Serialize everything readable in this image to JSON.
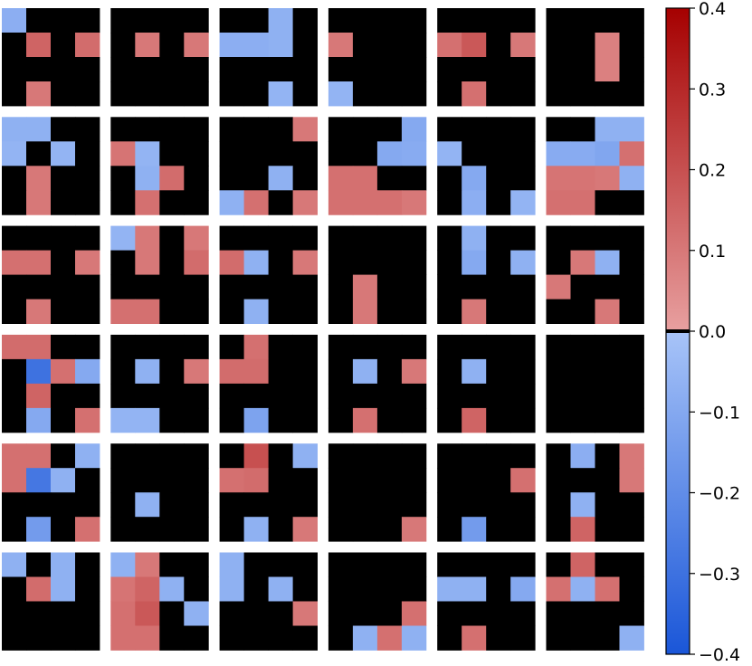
{
  "chart_data": {
    "type": "heatmap",
    "title": "",
    "xlabel": "",
    "ylabel": "",
    "layout": {
      "rows": 6,
      "cols": 6,
      "cell_grid": 4
    },
    "colormap": {
      "name": "diverging-blue-red",
      "zero_color": "#000000",
      "neg_light": "#a8c4f8",
      "neg_dark": "#1a56d8",
      "pos_light": "#e8a0a0",
      "pos_dark": "#a50000"
    },
    "vmin": -0.4,
    "vmax": 0.4,
    "colorbar": {
      "ticks": [
        0.4,
        0.3,
        0.2,
        0.1,
        0.0,
        -0.1,
        -0.2,
        -0.3,
        -0.4
      ],
      "tick_labels": [
        "0.4",
        "0.3",
        "0.2",
        "0.1",
        "0.0",
        "−0.1",
        "−0.2",
        "−0.3",
        "−0.4"
      ]
    },
    "panels": [
      [
        [
          -0.08,
          0,
          0,
          0
        ],
        [
          0,
          0.15,
          0,
          0.13
        ],
        [
          0,
          0,
          0,
          0
        ],
        [
          0,
          0.1,
          0,
          0
        ]
      ],
      [
        [
          0,
          0,
          0,
          0
        ],
        [
          0,
          0.1,
          0,
          0.1
        ],
        [
          0,
          0,
          0,
          0
        ],
        [
          0,
          0,
          0,
          0
        ]
      ],
      [
        [
          0,
          0,
          -0.07,
          0
        ],
        [
          -0.08,
          -0.08,
          -0.07,
          0
        ],
        [
          0,
          0,
          0,
          0
        ],
        [
          0,
          0,
          -0.06,
          0
        ]
      ],
      [
        [
          0,
          0,
          0,
          0
        ],
        [
          0.1,
          0,
          0,
          0
        ],
        [
          0,
          0,
          0,
          0
        ],
        [
          -0.06,
          0,
          0,
          0
        ]
      ],
      [
        [
          0,
          0,
          0,
          0
        ],
        [
          0.12,
          0.18,
          0,
          0.1
        ],
        [
          0,
          0,
          0,
          0
        ],
        [
          0,
          0.12,
          0,
          0
        ]
      ],
      [
        [
          0,
          0,
          0,
          0
        ],
        [
          0,
          0,
          0.08,
          0
        ],
        [
          0,
          0,
          0.08,
          0
        ],
        [
          0,
          0,
          0,
          0
        ]
      ],
      [
        [
          -0.07,
          -0.07,
          0,
          0
        ],
        [
          -0.06,
          0,
          -0.06,
          0
        ],
        [
          0,
          0.1,
          0,
          0
        ],
        [
          0,
          0.1,
          0,
          0
        ]
      ],
      [
        [
          0,
          0,
          0,
          0
        ],
        [
          0.11,
          -0.06,
          0,
          0
        ],
        [
          0,
          -0.07,
          0.13,
          0
        ],
        [
          0,
          0.12,
          0,
          0
        ]
      ],
      [
        [
          0,
          0,
          0,
          0.1
        ],
        [
          0,
          0,
          0,
          0
        ],
        [
          0,
          0,
          -0.07,
          0
        ],
        [
          -0.07,
          0.12,
          0,
          0.1
        ]
      ],
      [
        [
          0,
          0,
          0,
          -0.1
        ],
        [
          0,
          0,
          -0.1,
          -0.09
        ],
        [
          0.12,
          0.12,
          0,
          0
        ],
        [
          0.12,
          0.12,
          0.12,
          0.1
        ]
      ],
      [
        [
          0,
          0,
          0,
          0
        ],
        [
          -0.06,
          0,
          0,
          0
        ],
        [
          0,
          -0.1,
          0,
          0
        ],
        [
          0,
          -0.08,
          0,
          -0.06
        ]
      ],
      [
        [
          0,
          0,
          -0.07,
          -0.07
        ],
        [
          -0.09,
          -0.09,
          -0.11,
          0.12
        ],
        [
          0.11,
          0.11,
          0.1,
          -0.07
        ],
        [
          0.12,
          0.12,
          0,
          0
        ]
      ],
      [
        [
          0,
          0,
          0,
          0
        ],
        [
          0.12,
          0.12,
          0,
          0.1
        ],
        [
          0,
          0,
          0,
          0
        ],
        [
          0,
          0.1,
          0,
          0
        ]
      ],
      [
        [
          -0.06,
          0.1,
          0,
          0.1
        ],
        [
          0,
          0.1,
          0,
          0.13
        ],
        [
          0,
          0,
          0,
          0
        ],
        [
          0.12,
          0.12,
          0,
          0
        ]
      ],
      [
        [
          0,
          0,
          0,
          0
        ],
        [
          0.13,
          -0.07,
          0,
          0.1
        ],
        [
          0,
          0,
          0,
          0
        ],
        [
          0,
          -0.07,
          0,
          0
        ]
      ],
      [
        [
          0,
          0,
          0,
          0
        ],
        [
          0,
          0,
          0,
          0
        ],
        [
          0,
          0.1,
          0,
          0
        ],
        [
          0,
          0.1,
          0,
          0
        ]
      ],
      [
        [
          0,
          -0.07,
          0,
          0
        ],
        [
          0,
          -0.1,
          0,
          -0.07
        ],
        [
          0,
          0,
          0,
          0
        ],
        [
          0,
          0.1,
          0,
          0
        ]
      ],
      [
        [
          0,
          0,
          0,
          0
        ],
        [
          0,
          0.1,
          -0.07,
          0
        ],
        [
          0.1,
          0,
          0,
          0
        ],
        [
          0,
          0,
          0.1,
          0
        ]
      ],
      [
        [
          0.13,
          0.13,
          0,
          0
        ],
        [
          0,
          -0.3,
          0.12,
          -0.1
        ],
        [
          0,
          0.15,
          0,
          0
        ],
        [
          0,
          -0.1,
          0,
          0.12
        ]
      ],
      [
        [
          0,
          0,
          0,
          0
        ],
        [
          0,
          -0.07,
          0,
          0.1
        ],
        [
          0,
          0,
          0,
          0
        ],
        [
          -0.06,
          -0.06,
          0,
          0
        ]
      ],
      [
        [
          0,
          0.12,
          0,
          0
        ],
        [
          0.13,
          0.13,
          0,
          0
        ],
        [
          0,
          0,
          0,
          0
        ],
        [
          0,
          -0.12,
          0,
          0
        ]
      ],
      [
        [
          0,
          0,
          0,
          0
        ],
        [
          0,
          -0.07,
          0,
          0.1
        ],
        [
          0,
          0,
          0,
          0
        ],
        [
          0,
          0.12,
          0,
          0
        ]
      ],
      [
        [
          0,
          0,
          0,
          0
        ],
        [
          0,
          -0.07,
          0,
          0
        ],
        [
          0,
          0,
          0,
          0
        ],
        [
          0,
          0.15,
          0,
          0
        ]
      ],
      [
        [
          0,
          0,
          0,
          0
        ],
        [
          0,
          0,
          0,
          0
        ],
        [
          0,
          0,
          0,
          0
        ],
        [
          0,
          0,
          0,
          0
        ]
      ],
      [
        [
          0.12,
          0.12,
          0,
          -0.07
        ],
        [
          0.12,
          -0.28,
          -0.07,
          0
        ],
        [
          0,
          0,
          0,
          0
        ],
        [
          0,
          -0.15,
          0,
          0.12
        ]
      ],
      [
        [
          0,
          0,
          0,
          0
        ],
        [
          0,
          0,
          0,
          0
        ],
        [
          0,
          -0.07,
          0,
          0
        ],
        [
          0,
          0,
          0,
          0
        ]
      ],
      [
        [
          0,
          0.2,
          0,
          -0.07
        ],
        [
          0.12,
          0.13,
          0,
          0
        ],
        [
          0,
          0,
          0,
          0
        ],
        [
          0,
          -0.07,
          0,
          0.1
        ]
      ],
      [
        [
          0,
          0,
          0,
          0
        ],
        [
          0,
          0,
          0,
          0
        ],
        [
          0,
          0,
          0,
          0
        ],
        [
          0,
          0,
          0,
          0.1
        ]
      ],
      [
        [
          0,
          0,
          0,
          0
        ],
        [
          0,
          0,
          0,
          0.12
        ],
        [
          0,
          0,
          0,
          0
        ],
        [
          0,
          -0.15,
          0,
          0
        ]
      ],
      [
        [
          0,
          -0.08,
          0,
          0.1
        ],
        [
          0,
          0,
          0,
          0.1
        ],
        [
          0,
          -0.07,
          0,
          0
        ],
        [
          0,
          0.15,
          0,
          0
        ]
      ],
      [
        [
          -0.07,
          0,
          -0.07,
          0
        ],
        [
          0,
          0.13,
          -0.07,
          0
        ],
        [
          0,
          0,
          0,
          0
        ],
        [
          0,
          0,
          0,
          0
        ]
      ],
      [
        [
          -0.07,
          0.1,
          0,
          0
        ],
        [
          0.11,
          0.15,
          -0.07,
          0
        ],
        [
          0.12,
          0.18,
          0,
          -0.07
        ],
        [
          0.12,
          0.12,
          0,
          0
        ]
      ],
      [
        [
          -0.07,
          0,
          0,
          0
        ],
        [
          -0.07,
          0,
          -0.07,
          0
        ],
        [
          0,
          0,
          0,
          0.1
        ],
        [
          0,
          0,
          0,
          0
        ]
      ],
      [
        [
          0,
          0,
          0,
          0
        ],
        [
          0,
          0,
          0,
          0
        ],
        [
          0,
          0,
          0,
          0.12
        ],
        [
          0,
          -0.07,
          0.12,
          -0.07
        ]
      ],
      [
        [
          0,
          0,
          0,
          0
        ],
        [
          -0.07,
          -0.07,
          0,
          -0.1
        ],
        [
          0,
          0,
          0,
          0
        ],
        [
          0,
          0.12,
          0,
          0
        ]
      ],
      [
        [
          0,
          0.15,
          0,
          0
        ],
        [
          0.12,
          -0.07,
          0.12,
          0
        ],
        [
          0,
          0,
          0,
          0
        ],
        [
          0,
          0,
          0,
          -0.07
        ]
      ]
    ]
  }
}
